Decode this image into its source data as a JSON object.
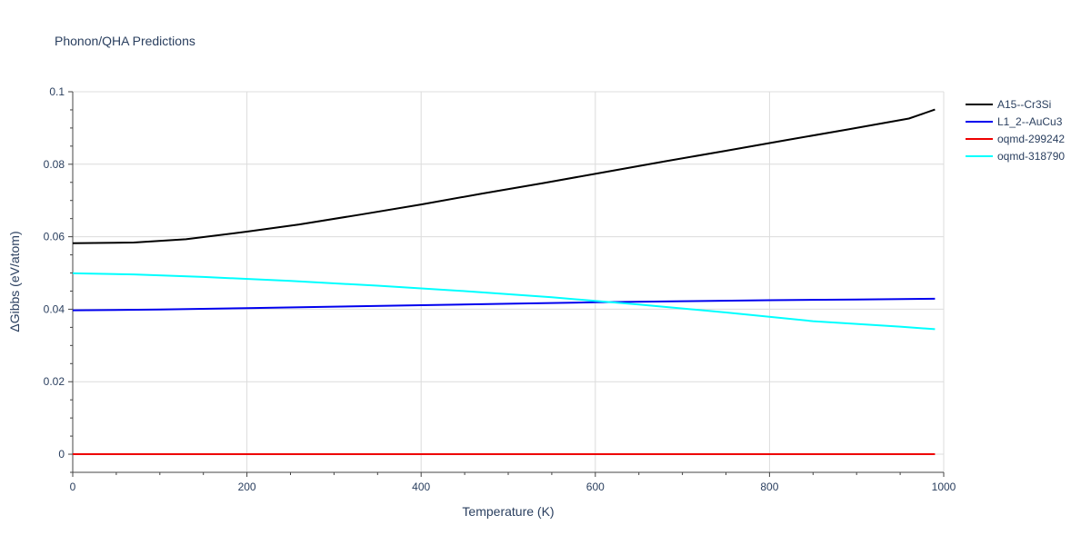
{
  "chart_data": {
    "type": "line",
    "title": "Phonon/QHA Predictions",
    "xlabel": "Temperature (K)",
    "ylabel": "ΔGibbs (eV/atom)",
    "xlim": [
      0,
      1000
    ],
    "ylim": [
      -0.005,
      0.1
    ],
    "xticks": [
      0,
      200,
      400,
      600,
      800,
      1000
    ],
    "xtick_labels": [
      "0",
      "200",
      "400",
      "600",
      "800",
      "1000"
    ],
    "yticks": [
      0,
      0.02,
      0.04,
      0.06,
      0.08,
      0.1
    ],
    "ytick_labels": [
      "0",
      "0.02",
      "0.04",
      "0.06",
      "0.08",
      "0.1"
    ],
    "grid": true,
    "legend_position": "right",
    "series": [
      {
        "name": "A15--Cr3Si",
        "color": "#000000",
        "x": [
          0,
          70,
          130,
          200,
          260,
          330,
          400,
          470,
          540,
          610,
          680,
          750,
          820,
          890,
          960,
          990
        ],
        "y": [
          0.0582,
          0.0584,
          0.0593,
          0.0614,
          0.0634,
          0.0661,
          0.0689,
          0.0719,
          0.0748,
          0.0778,
          0.0808,
          0.0837,
          0.0867,
          0.0896,
          0.0926,
          0.0951
        ]
      },
      {
        "name": "L1_2--AuCu3",
        "color": "#0000ee",
        "x": [
          0,
          100,
          200,
          300,
          400,
          500,
          600,
          700,
          800,
          900,
          990
        ],
        "y": [
          0.0397,
          0.0399,
          0.0403,
          0.0407,
          0.0411,
          0.0415,
          0.0419,
          0.0422,
          0.0425,
          0.0427,
          0.0429
        ]
      },
      {
        "name": "oqmd-299242",
        "color": "#ee0000",
        "x": [
          0,
          990
        ],
        "y": [
          0,
          0
        ]
      },
      {
        "name": "oqmd-318790",
        "color": "#00ffff",
        "x": [
          0,
          70,
          150,
          250,
          350,
          450,
          550,
          650,
          750,
          850,
          950,
          990
        ],
        "y": [
          0.0499,
          0.0496,
          0.0489,
          0.0478,
          0.0465,
          0.045,
          0.0433,
          0.0413,
          0.0391,
          0.0367,
          0.0352,
          0.0345
        ]
      }
    ]
  }
}
